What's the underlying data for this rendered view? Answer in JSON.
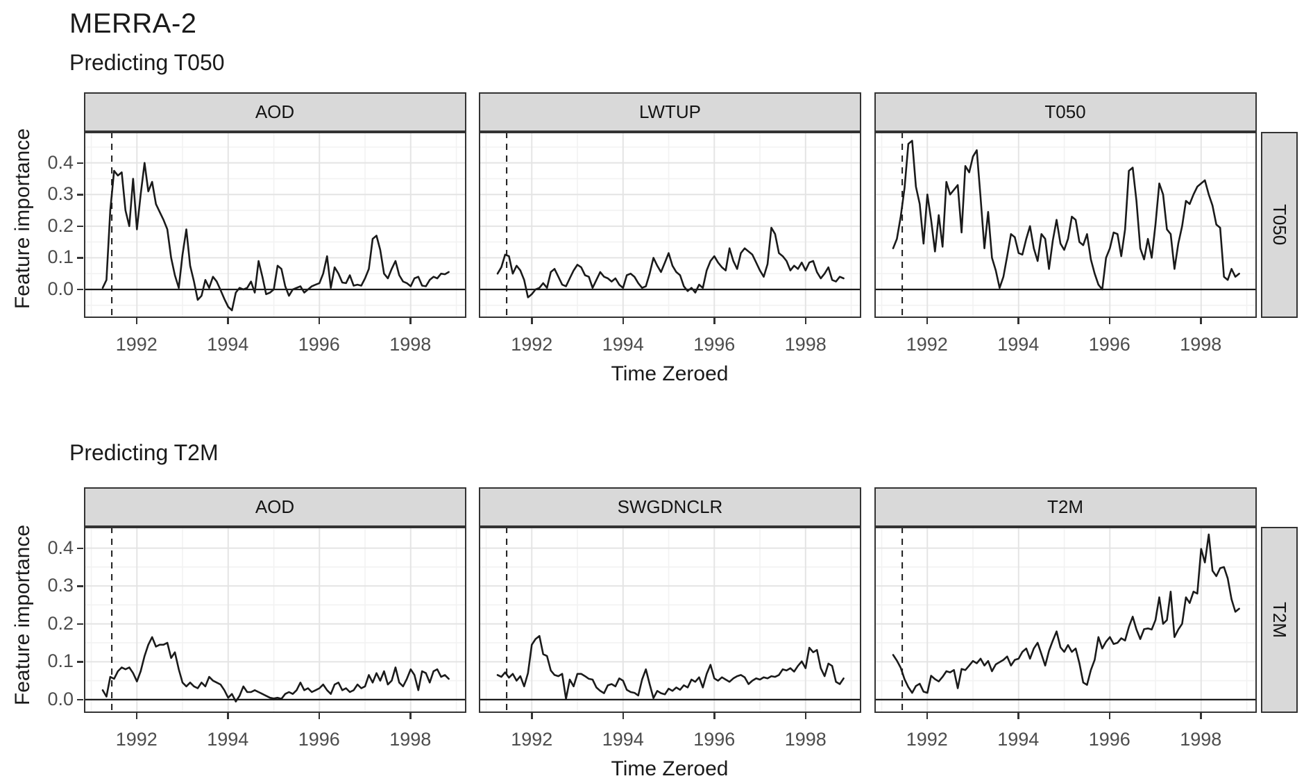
{
  "title": "MERRA-2",
  "colors": {
    "line": "#1a1a1a",
    "strip_bg": "#d9d9d9",
    "panel_border": "#333333",
    "grid_major": "#e4e4e4",
    "grid_minor": "#f2f2f2",
    "tick_text": "#4d4d4d",
    "zero_line": "#1a1a1a",
    "event_line": "#1a1a1a"
  },
  "chart_data": [
    {
      "type": "line",
      "title": "Predicting T050",
      "xlabel": "Time Zeroed",
      "ylabel": "Feature importance",
      "right_strip": "T050",
      "x_ticks": [
        1992,
        1994,
        1996,
        1998
      ],
      "x_tick_labels": [
        "1992",
        "1994",
        "1996",
        "1998"
      ],
      "y_ticks": [
        0.4,
        0.3,
        0.2,
        0.1,
        0.0
      ],
      "y_tick_labels": [
        "0.4",
        "0.3",
        "0.2",
        "0.1",
        "0.0"
      ],
      "xlim": [
        1990.84,
        1999.22
      ],
      "ylim": [
        -0.09,
        0.498
      ],
      "x_minor": [
        1991,
        1993,
        1995,
        1997,
        1999
      ],
      "y_minor_step": 0.05,
      "vline_x": 1991.45,
      "hline_y": 0,
      "legend": "none",
      "grid": "on",
      "x": [
        1991.25,
        1991.333,
        1991.417,
        1991.5,
        1991.583,
        1991.667,
        1991.75,
        1991.833,
        1991.917,
        1992,
        1992.083,
        1992.167,
        1992.25,
        1992.333,
        1992.417,
        1992.5,
        1992.583,
        1992.667,
        1992.75,
        1992.833,
        1992.917,
        1993,
        1993.083,
        1993.167,
        1993.25,
        1993.333,
        1993.417,
        1993.5,
        1993.583,
        1993.667,
        1993.75,
        1993.833,
        1993.917,
        1994,
        1994.083,
        1994.167,
        1994.25,
        1994.333,
        1994.417,
        1994.5,
        1994.583,
        1994.667,
        1994.75,
        1994.833,
        1994.917,
        1995,
        1995.083,
        1995.167,
        1995.25,
        1995.333,
        1995.417,
        1995.5,
        1995.583,
        1995.667,
        1995.75,
        1995.833,
        1995.917,
        1996,
        1996.083,
        1996.167,
        1996.25,
        1996.333,
        1996.417,
        1996.5,
        1996.583,
        1996.667,
        1996.75,
        1996.833,
        1996.917,
        1997,
        1997.083,
        1997.167,
        1997.25,
        1997.333,
        1997.417,
        1997.5,
        1997.583,
        1997.667,
        1997.75,
        1997.833,
        1997.917,
        1998,
        1998.083,
        1998.167,
        1998.25,
        1998.333,
        1998.417,
        1998.5,
        1998.583,
        1998.667,
        1998.75,
        1998.833
      ],
      "series": [
        {
          "name": "AOD",
          "values": [
            0.005,
            0.03,
            0.25,
            0.375,
            0.36,
            0.37,
            0.25,
            0.2,
            0.35,
            0.19,
            0.3,
            0.4,
            0.31,
            0.34,
            0.27,
            0.245,
            0.22,
            0.19,
            0.1,
            0.045,
            0.005,
            0.11,
            0.19,
            0.075,
            0.025,
            -0.033,
            -0.02,
            0.03,
            0.005,
            0.04,
            0.025,
            -0.002,
            -0.03,
            -0.055,
            -0.066,
            -0.01,
            0.005,
            0.0,
            0.005,
            0.025,
            -0.01,
            0.09,
            0.04,
            -0.015,
            -0.01,
            0.0,
            0.075,
            0.065,
            0.01,
            -0.02,
            0.0,
            0.005,
            0.01,
            -0.01,
            0.0,
            0.01,
            0.015,
            0.02,
            0.05,
            0.105,
            0.005,
            0.07,
            0.05,
            0.022,
            0.02,
            0.045,
            0.012,
            0.015,
            0.012,
            0.035,
            0.065,
            0.16,
            0.17,
            0.125,
            0.05,
            0.035,
            0.065,
            0.09,
            0.045,
            0.025,
            0.02,
            0.01,
            0.035,
            0.04,
            0.012,
            0.01,
            0.03,
            0.04,
            0.035,
            0.05,
            0.048,
            0.055
          ]
        },
        {
          "name": "LWTUP",
          "values": [
            0.05,
            0.07,
            0.11,
            0.105,
            0.05,
            0.075,
            0.06,
            0.03,
            -0.025,
            -0.015,
            0.0,
            0.005,
            0.02,
            0.005,
            0.055,
            0.065,
            0.04,
            0.015,
            0.01,
            0.035,
            0.06,
            0.078,
            0.07,
            0.045,
            0.04,
            0.005,
            0.03,
            0.055,
            0.04,
            0.035,
            0.025,
            0.035,
            0.015,
            0.005,
            0.045,
            0.05,
            0.04,
            0.02,
            0.005,
            0.01,
            0.05,
            0.1,
            0.075,
            0.055,
            0.085,
            0.115,
            0.075,
            0.055,
            0.045,
            0.01,
            -0.005,
            0.005,
            -0.01,
            0.015,
            0.005,
            0.06,
            0.09,
            0.105,
            0.085,
            0.07,
            0.06,
            0.13,
            0.09,
            0.065,
            0.115,
            0.13,
            0.12,
            0.11,
            0.085,
            0.06,
            0.04,
            0.08,
            0.195,
            0.175,
            0.115,
            0.105,
            0.09,
            0.06,
            0.075,
            0.065,
            0.085,
            0.06,
            0.085,
            0.09,
            0.055,
            0.035,
            0.05,
            0.07,
            0.03,
            0.025,
            0.04,
            0.035
          ]
        },
        {
          "name": "T050",
          "values": [
            0.13,
            0.16,
            0.23,
            0.32,
            0.46,
            0.47,
            0.325,
            0.27,
            0.145,
            0.3,
            0.22,
            0.12,
            0.235,
            0.135,
            0.34,
            0.3,
            0.315,
            0.33,
            0.18,
            0.39,
            0.37,
            0.42,
            0.44,
            0.29,
            0.13,
            0.245,
            0.1,
            0.06,
            0.005,
            0.04,
            0.105,
            0.175,
            0.165,
            0.115,
            0.11,
            0.16,
            0.2,
            0.13,
            0.09,
            0.175,
            0.16,
            0.065,
            0.155,
            0.22,
            0.145,
            0.125,
            0.16,
            0.23,
            0.22,
            0.15,
            0.14,
            0.175,
            0.095,
            0.05,
            0.015,
            0.0,
            0.1,
            0.13,
            0.18,
            0.175,
            0.105,
            0.19,
            0.375,
            0.385,
            0.28,
            0.13,
            0.095,
            0.16,
            0.1,
            0.205,
            0.335,
            0.3,
            0.19,
            0.175,
            0.065,
            0.145,
            0.2,
            0.28,
            0.27,
            0.3,
            0.325,
            0.335,
            0.345,
            0.3,
            0.265,
            0.205,
            0.195,
            0.04,
            0.03,
            0.065,
            0.04,
            0.05
          ]
        }
      ]
    },
    {
      "type": "line",
      "title": "Predicting T2M",
      "xlabel": "Time Zeroed",
      "ylabel": "Feature importance",
      "right_strip": "T2M",
      "x_ticks": [
        1992,
        1994,
        1996,
        1998
      ],
      "x_tick_labels": [
        "1992",
        "1994",
        "1996",
        "1998"
      ],
      "y_ticks": [
        0.4,
        0.3,
        0.2,
        0.1,
        0.0
      ],
      "y_tick_labels": [
        "0.4",
        "0.3",
        "0.2",
        "0.1",
        "0.0"
      ],
      "xlim": [
        1990.84,
        1999.22
      ],
      "ylim": [
        -0.035,
        0.456
      ],
      "x_minor": [
        1991,
        1993,
        1995,
        1997,
        1999
      ],
      "y_minor_step": 0.05,
      "vline_x": 1991.45,
      "hline_y": 0,
      "legend": "none",
      "grid": "on",
      "x": [
        1991.25,
        1991.333,
        1991.417,
        1991.5,
        1991.583,
        1991.667,
        1991.75,
        1991.833,
        1991.917,
        1992,
        1992.083,
        1992.167,
        1992.25,
        1992.333,
        1992.417,
        1992.5,
        1992.583,
        1992.667,
        1992.75,
        1992.833,
        1992.917,
        1993,
        1993.083,
        1993.167,
        1993.25,
        1993.333,
        1993.417,
        1993.5,
        1993.583,
        1993.667,
        1993.75,
        1993.833,
        1993.917,
        1994,
        1994.083,
        1994.167,
        1994.25,
        1994.333,
        1994.417,
        1994.5,
        1994.583,
        1994.667,
        1994.75,
        1994.833,
        1994.917,
        1995,
        1995.083,
        1995.167,
        1995.25,
        1995.333,
        1995.417,
        1995.5,
        1995.583,
        1995.667,
        1995.75,
        1995.833,
        1995.917,
        1996,
        1996.083,
        1996.167,
        1996.25,
        1996.333,
        1996.417,
        1996.5,
        1996.583,
        1996.667,
        1996.75,
        1996.833,
        1996.917,
        1997,
        1997.083,
        1997.167,
        1997.25,
        1997.333,
        1997.417,
        1997.5,
        1997.583,
        1997.667,
        1997.75,
        1997.833,
        1997.917,
        1998,
        1998.083,
        1998.167,
        1998.25,
        1998.333,
        1998.417,
        1998.5,
        1998.583,
        1998.667,
        1998.75,
        1998.833
      ],
      "series": [
        {
          "name": "AOD",
          "values": [
            0.025,
            0.008,
            0.06,
            0.055,
            0.075,
            0.085,
            0.08,
            0.085,
            0.07,
            0.048,
            0.075,
            0.115,
            0.145,
            0.165,
            0.14,
            0.145,
            0.145,
            0.15,
            0.11,
            0.125,
            0.08,
            0.045,
            0.035,
            0.045,
            0.035,
            0.03,
            0.045,
            0.035,
            0.06,
            0.05,
            0.045,
            0.04,
            0.025,
            0.005,
            0.015,
            -0.005,
            0.01,
            0.035,
            0.02,
            0.02,
            0.025,
            0.02,
            0.015,
            0.01,
            0.005,
            0.003,
            0.005,
            0.002,
            0.015,
            0.02,
            0.015,
            0.025,
            0.045,
            0.025,
            0.03,
            0.02,
            0.025,
            0.03,
            0.04,
            0.025,
            0.015,
            0.04,
            0.045,
            0.025,
            0.03,
            0.02,
            0.025,
            0.04,
            0.03,
            0.035,
            0.065,
            0.045,
            0.07,
            0.05,
            0.075,
            0.04,
            0.05,
            0.085,
            0.045,
            0.035,
            0.055,
            0.08,
            0.065,
            0.025,
            0.075,
            0.07,
            0.045,
            0.075,
            0.08,
            0.06,
            0.065,
            0.055
          ]
        },
        {
          "name": "SWGDNCLR",
          "values": [
            0.065,
            0.06,
            0.072,
            0.058,
            0.068,
            0.05,
            0.062,
            0.035,
            0.07,
            0.145,
            0.16,
            0.168,
            0.12,
            0.115,
            0.077,
            0.065,
            0.062,
            0.068,
            0.002,
            0.053,
            0.035,
            0.068,
            0.068,
            0.062,
            0.055,
            0.053,
            0.032,
            0.023,
            0.017,
            0.038,
            0.041,
            0.035,
            0.056,
            0.05,
            0.026,
            0.02,
            0.018,
            0.011,
            0.053,
            0.08,
            0.041,
            0.004,
            0.023,
            0.017,
            0.014,
            0.029,
            0.023,
            0.032,
            0.026,
            0.038,
            0.032,
            0.053,
            0.047,
            0.059,
            0.032,
            0.068,
            0.092,
            0.056,
            0.05,
            0.059,
            0.053,
            0.047,
            0.056,
            0.062,
            0.065,
            0.059,
            0.041,
            0.05,
            0.056,
            0.053,
            0.059,
            0.056,
            0.062,
            0.06,
            0.065,
            0.08,
            0.077,
            0.083,
            0.074,
            0.089,
            0.101,
            0.083,
            0.137,
            0.125,
            0.131,
            0.083,
            0.062,
            0.095,
            0.089,
            0.047,
            0.041,
            0.056
          ]
        },
        {
          "name": "T2M",
          "values": [
            0.118,
            0.103,
            0.084,
            0.054,
            0.033,
            0.018,
            0.036,
            0.042,
            0.021,
            0.018,
            0.063,
            0.054,
            0.048,
            0.06,
            0.075,
            0.072,
            0.078,
            0.03,
            0.081,
            0.078,
            0.09,
            0.102,
            0.096,
            0.108,
            0.09,
            0.102,
            0.075,
            0.093,
            0.099,
            0.105,
            0.114,
            0.09,
            0.105,
            0.108,
            0.126,
            0.135,
            0.108,
            0.135,
            0.15,
            0.12,
            0.09,
            0.129,
            0.156,
            0.18,
            0.138,
            0.126,
            0.144,
            0.126,
            0.135,
            0.096,
            0.045,
            0.039,
            0.078,
            0.105,
            0.165,
            0.135,
            0.153,
            0.165,
            0.147,
            0.15,
            0.162,
            0.156,
            0.192,
            0.219,
            0.185,
            0.16,
            0.186,
            0.188,
            0.185,
            0.21,
            0.27,
            0.2,
            0.21,
            0.285,
            0.165,
            0.185,
            0.2,
            0.27,
            0.255,
            0.285,
            0.28,
            0.398,
            0.362,
            0.436,
            0.34,
            0.326,
            0.347,
            0.35,
            0.32,
            0.265,
            0.232,
            0.24
          ]
        }
      ]
    }
  ]
}
